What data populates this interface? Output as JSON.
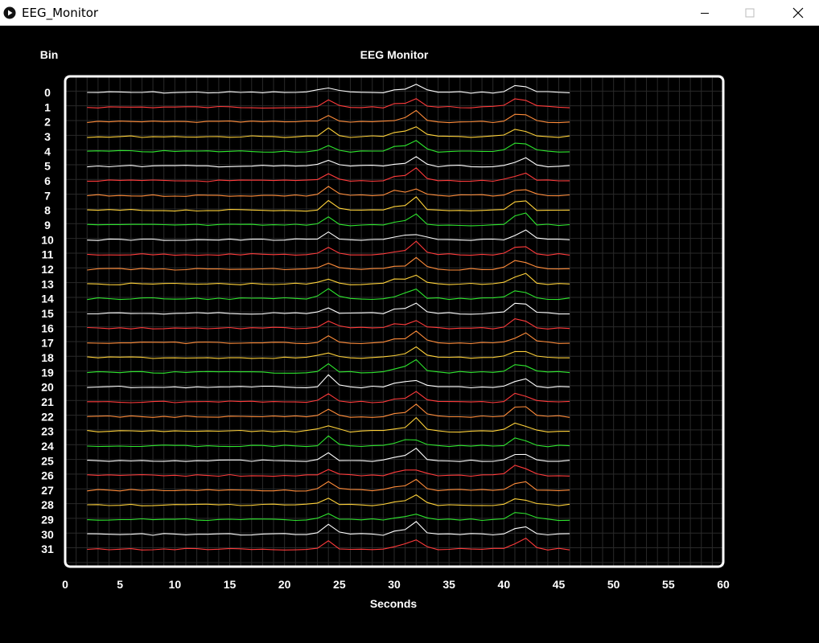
{
  "window": {
    "title": "EEG_Monitor",
    "app_icon": "play-circle-icon",
    "controls": [
      "minimize-icon",
      "maximize-icon",
      "close-icon"
    ]
  },
  "chart_data": {
    "type": "line",
    "title": "EEG Monitor",
    "xlabel": "Seconds",
    "ylabel": "Bin",
    "xlim": [
      0,
      60
    ],
    "x_ticks": [
      0,
      5,
      10,
      15,
      20,
      25,
      30,
      35,
      40,
      45,
      50,
      55,
      60
    ],
    "grid": true,
    "color_cycle": [
      "#ff3b3b",
      "#ff8c3a",
      "#ffd23a",
      "#2ee62e",
      "#ffffff"
    ],
    "bins": [
      "0",
      "1",
      "2",
      "3",
      "4",
      "5",
      "6",
      "7",
      "8",
      "9",
      "10",
      "11",
      "12",
      "13",
      "14",
      "15",
      "16",
      "17",
      "18",
      "19",
      "20",
      "21",
      "22",
      "23",
      "24",
      "25",
      "26",
      "27",
      "28",
      "29",
      "30",
      "31"
    ],
    "x": [
      2,
      3,
      4,
      5,
      6,
      7,
      8,
      9,
      10,
      11,
      12,
      13,
      14,
      15,
      16,
      17,
      18,
      19,
      20,
      21,
      22,
      23,
      24,
      25,
      26,
      27,
      28,
      29,
      30,
      31,
      32,
      33,
      34,
      35,
      36,
      37,
      38,
      39,
      40,
      41,
      42,
      43,
      44,
      45,
      46
    ],
    "spike_events": [
      {
        "x": 24,
        "magnitude": 0.9
      },
      {
        "x": 30.5,
        "magnitude": 0.6
      },
      {
        "x": 32,
        "magnitude": 1.1
      },
      {
        "x": 41,
        "magnitude": 0.7
      },
      {
        "x": 42,
        "magnitude": 0.8
      }
    ]
  }
}
